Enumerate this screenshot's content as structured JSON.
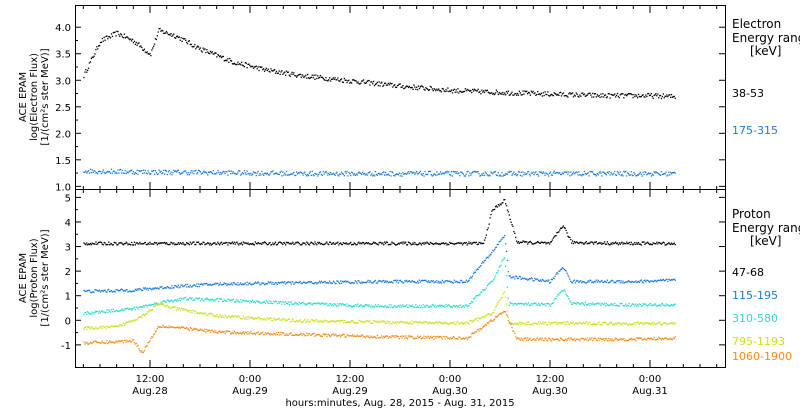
{
  "figure": {
    "xlabel": "hours:minutes, Aug. 28, 2015 - Aug. 31, 2015"
  },
  "x_ticks": [
    {
      "hours": 12,
      "time": "12:00",
      "date": "Aug.28"
    },
    {
      "hours": 24,
      "time": "0:00",
      "date": "Aug.29"
    },
    {
      "hours": 36,
      "time": "12:00",
      "date": "Aug.29"
    },
    {
      "hours": 48,
      "time": "0:00",
      "date": "Aug.30"
    },
    {
      "hours": 60,
      "time": "12:00",
      "date": "Aug.30"
    },
    {
      "hours": 72,
      "time": "0:00",
      "date": "Aug.31"
    }
  ],
  "chart_data": [
    {
      "type": "scatter",
      "panel": "electron",
      "ylabel_lines": [
        "ACE EPAM",
        "log(Electron Flux)",
        "[1/(cm²s ster MeV)]"
      ],
      "legend_title": [
        "Electron",
        "Energy ranges",
        "[keV]"
      ],
      "ylim": [
        0.95,
        4.4
      ],
      "yticks": [
        "1.0",
        "1.5",
        "2.0",
        "2.5",
        "3.0",
        "3.5",
        "4.0"
      ],
      "xlim_hours": [
        3,
        81
      ],
      "series": [
        {
          "name": "38-53",
          "color": "#000000",
          "points": [
            [
              4,
              3.1
            ],
            [
              6,
              3.75
            ],
            [
              8,
              3.9
            ],
            [
              10,
              3.75
            ],
            [
              12,
              3.5
            ],
            [
              13,
              3.95
            ],
            [
              15,
              3.85
            ],
            [
              18,
              3.6
            ],
            [
              22,
              3.35
            ],
            [
              26,
              3.2
            ],
            [
              30,
              3.1
            ],
            [
              36,
              3.0
            ],
            [
              42,
              2.9
            ],
            [
              48,
              2.82
            ],
            [
              54,
              2.78
            ],
            [
              60,
              2.75
            ],
            [
              66,
              2.72
            ],
            [
              72,
              2.72
            ],
            [
              75,
              2.7
            ]
          ]
        },
        {
          "name": "175-315",
          "color": "#1a7ad8",
          "points": [
            [
              4,
              1.3
            ],
            [
              12,
              1.28
            ],
            [
              20,
              1.27
            ],
            [
              30,
              1.25
            ],
            [
              40,
              1.25
            ],
            [
              50,
              1.25
            ],
            [
              60,
              1.25
            ],
            [
              70,
              1.25
            ],
            [
              75,
              1.25
            ]
          ]
        }
      ]
    },
    {
      "type": "scatter",
      "panel": "proton",
      "ylabel_lines": [
        "ACE EPAM",
        "log(Proton Flux)",
        "[1/(cm²s ster MeV)]"
      ],
      "legend_title": [
        "Proton",
        "Energy ranges",
        "[keV]"
      ],
      "ylim": [
        -1.9,
        5.3
      ],
      "yticks": [
        "-1",
        "0",
        "1",
        "2",
        "3",
        "4",
        "5"
      ],
      "xlim_hours": [
        3,
        81
      ],
      "series": [
        {
          "name": "47-68",
          "color": "#000000",
          "points": [
            [
              4,
              3.15
            ],
            [
              20,
              3.15
            ],
            [
              35,
              3.15
            ],
            [
              45,
              3.15
            ],
            [
              52,
              3.15
            ],
            [
              53,
              4.5
            ],
            [
              54.5,
              4.9
            ],
            [
              56,
              3.2
            ],
            [
              60,
              3.15
            ],
            [
              61.5,
              3.9
            ],
            [
              62.5,
              3.2
            ],
            [
              68,
              3.15
            ],
            [
              75,
              3.15
            ]
          ]
        },
        {
          "name": "115-195",
          "color": "#1a7ad8",
          "points": [
            [
              4,
              1.2
            ],
            [
              10,
              1.25
            ],
            [
              15,
              1.4
            ],
            [
              20,
              1.5
            ],
            [
              30,
              1.55
            ],
            [
              40,
              1.6
            ],
            [
              50,
              1.6
            ],
            [
              53,
              2.8
            ],
            [
              54.5,
              3.5
            ],
            [
              55,
              1.8
            ],
            [
              60,
              1.6
            ],
            [
              61.5,
              2.2
            ],
            [
              62.5,
              1.6
            ],
            [
              70,
              1.6
            ],
            [
              75,
              1.65
            ]
          ]
        },
        {
          "name": "310-580",
          "color": "#2ad8d0",
          "points": [
            [
              4,
              0.3
            ],
            [
              10,
              0.5
            ],
            [
              14,
              0.8
            ],
            [
              16,
              0.9
            ],
            [
              20,
              0.85
            ],
            [
              30,
              0.7
            ],
            [
              40,
              0.6
            ],
            [
              50,
              0.6
            ],
            [
              53,
              1.6
            ],
            [
              54.5,
              2.6
            ],
            [
              55,
              0.7
            ],
            [
              60,
              0.65
            ],
            [
              61.5,
              1.3
            ],
            [
              62.5,
              0.7
            ],
            [
              70,
              0.65
            ],
            [
              75,
              0.65
            ]
          ]
        },
        {
          "name": "795-1193",
          "color": "#c8e020",
          "points": [
            [
              4,
              -0.3
            ],
            [
              8,
              -0.25
            ],
            [
              11,
              0.2
            ],
            [
              13,
              0.7
            ],
            [
              15,
              0.5
            ],
            [
              20,
              0.2
            ],
            [
              30,
              0.0
            ],
            [
              40,
              -0.05
            ],
            [
              50,
              -0.1
            ],
            [
              53,
              0.3
            ],
            [
              54.5,
              1.2
            ],
            [
              55,
              -0.1
            ],
            [
              60,
              -0.1
            ],
            [
              70,
              -0.1
            ],
            [
              75,
              -0.1
            ]
          ]
        },
        {
          "name": "1060-1900",
          "color": "#f08c1a",
          "points": [
            [
              4,
              -0.9
            ],
            [
              8,
              -0.85
            ],
            [
              10,
              -0.8
            ],
            [
              11,
              -1.3
            ],
            [
              13,
              -0.2
            ],
            [
              16,
              -0.3
            ],
            [
              20,
              -0.45
            ],
            [
              30,
              -0.55
            ],
            [
              40,
              -0.65
            ],
            [
              50,
              -0.7
            ],
            [
              54.5,
              0.4
            ],
            [
              56,
              -0.75
            ],
            [
              60,
              -0.75
            ],
            [
              70,
              -0.75
            ],
            [
              75,
              -0.7
            ]
          ]
        }
      ]
    }
  ]
}
